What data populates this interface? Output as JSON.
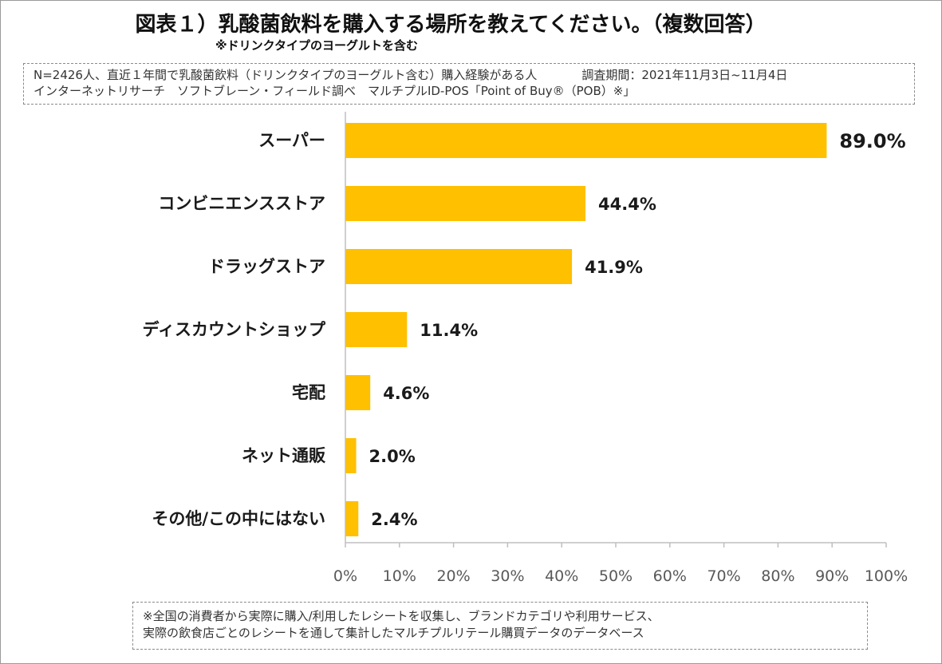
{
  "title": "図表１）乳酸菌飲料を購入する場所を教えてください。（複数回答）",
  "subtitle": "※ドリンクタイプのヨーグルトを含む",
  "note_top": {
    "line1": "N=2426人、直近１年間で乳酸菌飲料（ドリンクタイプのヨーグルト含む）購入経験がある人",
    "period": "調査期間：2021年11月3日~11月4日",
    "line2": "インターネットリサーチ　ソフトブレーン・フィールド調べ　マルチプルID-POS「Point of Buy®（POB）※」"
  },
  "note_bottom": {
    "line1": "※全国の消費者から実際に購入/利用したレシートを収集し、ブランドカテゴリや利用サービス、",
    "line2": "実際の飲食店ごとのレシートを通して集計したマルチプルリテール購買データのデータベース"
  },
  "colors": {
    "bar": "#FFC000",
    "axis": "#BFBFBF",
    "text": "#1a1a1a"
  },
  "chart_data": {
    "type": "bar",
    "orientation": "horizontal",
    "title": "図表１）乳酸菌飲料を購入する場所を教えてください。（複数回答）",
    "categories": [
      "スーパー",
      "コンビニエンスストア",
      "ドラッグストア",
      "ディスカウントショップ",
      "宅配",
      "ネット通販",
      "その他/この中にはない"
    ],
    "values": [
      89.0,
      44.4,
      41.9,
      11.4,
      4.6,
      2.0,
      2.4
    ],
    "value_labels": [
      "89.0%",
      "44.4%",
      "41.9%",
      "11.4%",
      "4.6%",
      "2.0%",
      "2.4%"
    ],
    "xlim": [
      0,
      100
    ],
    "xticks": [
      0,
      10,
      20,
      30,
      40,
      50,
      60,
      70,
      80,
      90,
      100
    ],
    "xtick_labels": [
      "0%",
      "10%",
      "20%",
      "30%",
      "40%",
      "50%",
      "60%",
      "70%",
      "80%",
      "90%",
      "100%"
    ],
    "xlabel": "",
    "ylabel": "",
    "grid": false,
    "legend": "none"
  }
}
